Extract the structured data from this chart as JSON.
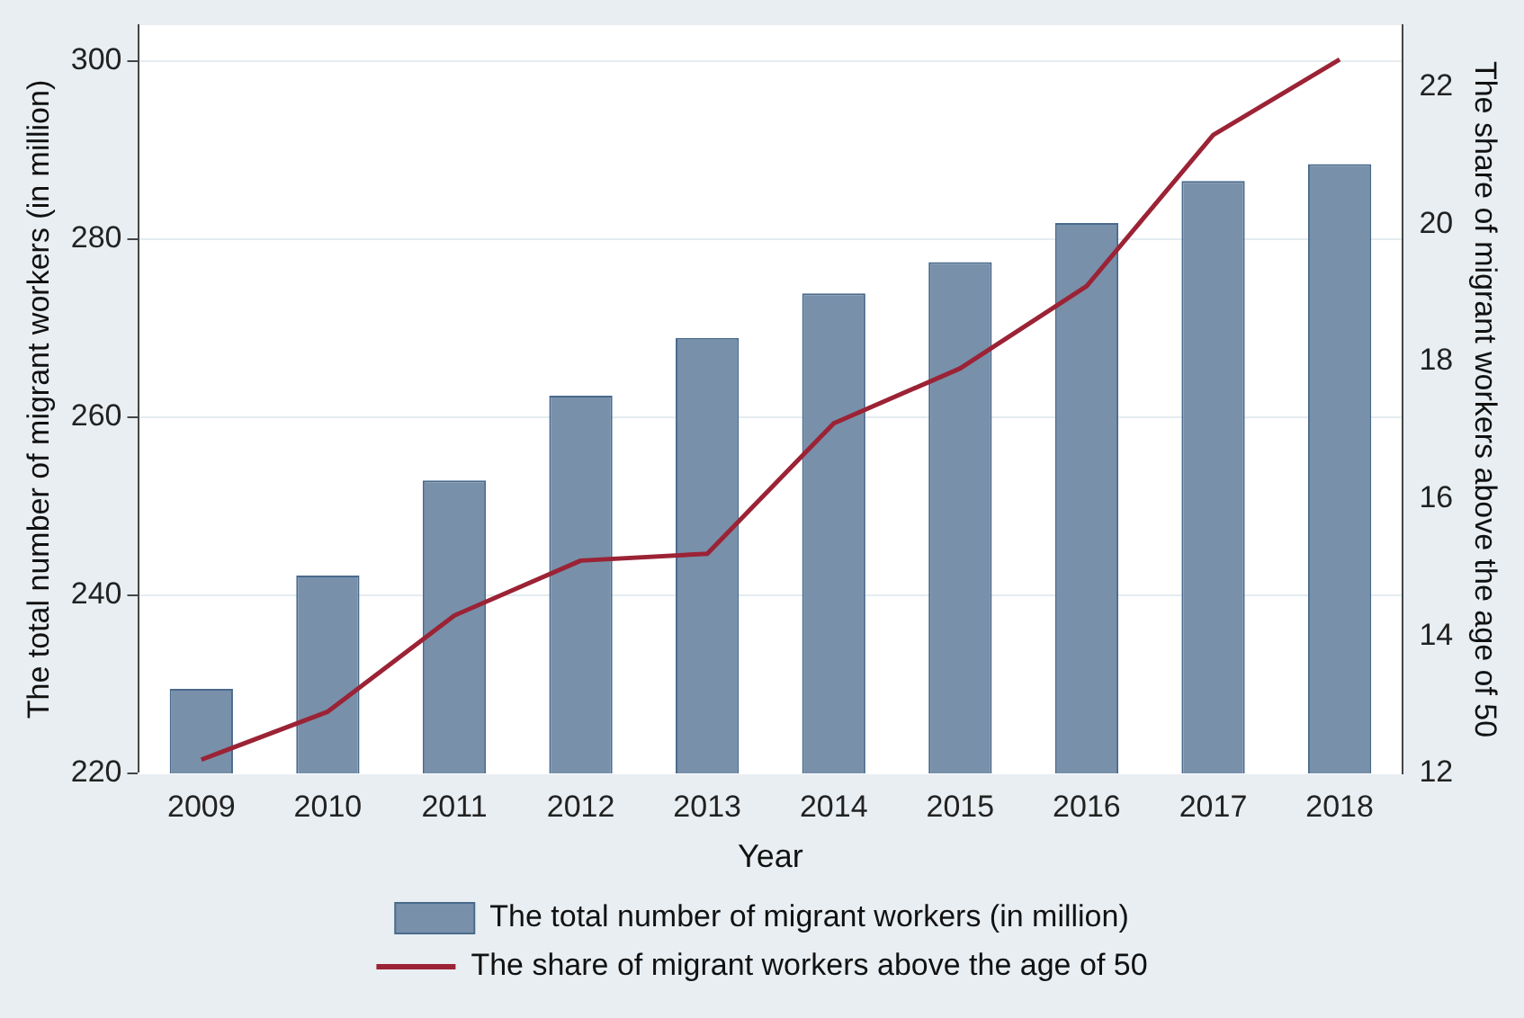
{
  "chart_data": {
    "type": "bar",
    "xlabel": "Year",
    "ylabel": "The total number of migrant workers (in million)",
    "y2label": "The share of migrant workers above the age of 50",
    "categories": [
      "2009",
      "2010",
      "2011",
      "2012",
      "2013",
      "2014",
      "2015",
      "2016",
      "2017",
      "2018"
    ],
    "series": [
      {
        "name": "The total number of migrant workers (in million)",
        "color": "#7890aa",
        "values": [
          229.5,
          242.2,
          252.9,
          262.4,
          268.9,
          273.9,
          277.4,
          281.8,
          286.5,
          288.4
        ]
      },
      {
        "name": "The share of migrant workers above the age of 50",
        "type": "line",
        "axis": "y2",
        "color": "#9b2335",
        "values": [
          12.2,
          12.9,
          14.3,
          15.1,
          15.2,
          17.1,
          17.9,
          19.1,
          21.3,
          22.4
        ]
      }
    ],
    "ylim": [
      220,
      304
    ],
    "yticks": [
      220,
      240,
      260,
      280,
      300
    ],
    "y2lim": [
      12,
      22.9
    ],
    "y2ticks": [
      12,
      14,
      16,
      18,
      20,
      22
    ],
    "grid": "y",
    "legend": "bottom",
    "marker": "none",
    "line_style": "solid"
  }
}
